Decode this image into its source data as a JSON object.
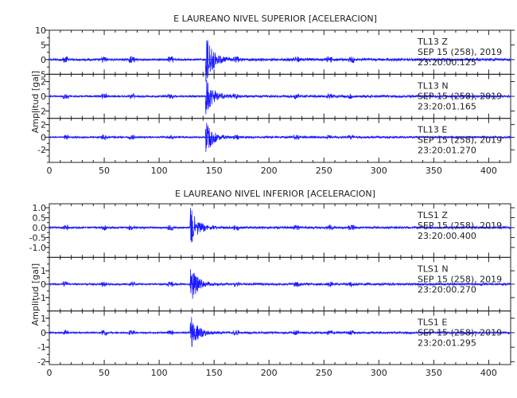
{
  "trace_color": "#1a1aff",
  "chart_data": [
    {
      "type": "line",
      "title": "E LAUREANO NIVEL SUPERIOR [ACELERACION]",
      "ylabel": "Amplitud [gal]",
      "xlim": [
        0,
        420
      ],
      "x_ticks": [
        0,
        50,
        100,
        150,
        200,
        250,
        300,
        350,
        400
      ],
      "panels": [
        {
          "station": "TL13",
          "component": "Z",
          "date": "SEP 15 (258), 2019",
          "time": "23:20:00.125",
          "ylim": [
            -5,
            10
          ],
          "y_ticks": [
            10,
            5,
            0,
            -5
          ],
          "event_onset_x": 142,
          "peak_amplitude": 9
        },
        {
          "station": "TL13",
          "component": "N",
          "date": "SEP 15 (258), 2019",
          "time": "23:20:01.165",
          "ylim": [
            -3,
            3
          ],
          "y_ticks": [
            2,
            0,
            -2
          ],
          "event_onset_x": 142,
          "peak_amplitude": 3
        },
        {
          "station": "TL13",
          "component": "E",
          "date": "SEP 15 (258), 2019",
          "time": "23:20:01.270",
          "ylim": [
            -4,
            3
          ],
          "y_ticks": [
            2,
            0,
            -2
          ],
          "event_onset_x": 142,
          "peak_amplitude": 3
        }
      ]
    },
    {
      "type": "line",
      "title": "E LAUREANO NIVEL INFERIOR [ACELERACION]",
      "ylabel": "Amplitud [gal]",
      "xlim": [
        0,
        420
      ],
      "x_ticks": [
        0,
        50,
        100,
        150,
        200,
        250,
        300,
        350,
        400
      ],
      "panels": [
        {
          "station": "TLS1",
          "component": "Z",
          "date": "SEP 15 (258), 2019",
          "time": "23:20:00.400",
          "ylim": [
            -1.5,
            1.2
          ],
          "y_ticks": [
            1.0,
            0.5,
            0.0,
            -0.5,
            -1.0
          ],
          "y_tick_labels": [
            "1.0",
            "0.5",
            "0.0",
            "-0.5",
            "-1.0"
          ],
          "event_onset_x": 128,
          "peak_amplitude": 1.1
        },
        {
          "station": "TLS1",
          "component": "N",
          "date": "SEP 15 (258), 2019",
          "time": "23:20:00.270",
          "ylim": [
            -2,
            2
          ],
          "y_ticks": [
            1,
            0,
            -1
          ],
          "event_onset_x": 128,
          "peak_amplitude": 1.6
        },
        {
          "station": "TLS1",
          "component": "E",
          "date": "SEP 15 (258), 2019",
          "time": "23:20:01.295",
          "ylim": [
            -2.2,
            1.5
          ],
          "y_ticks": [
            1,
            0,
            -1,
            -2
          ],
          "event_onset_x": 128,
          "peak_amplitude": 1.4
        }
      ]
    }
  ]
}
